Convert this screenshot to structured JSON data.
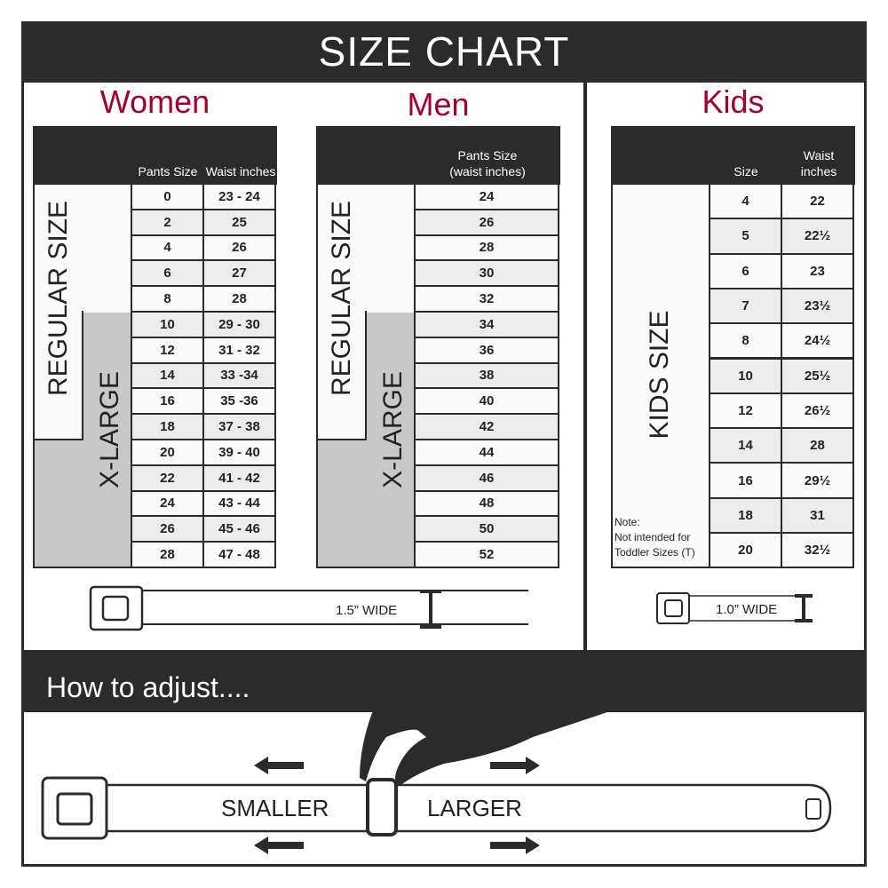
{
  "title": "SIZE CHART",
  "women": {
    "heading": "Women",
    "col_pants": "Pants Size",
    "col_waist": "Waist inches",
    "regular_label": "REGULAR SIZE",
    "xlarge_label": "X-LARGE",
    "rows": [
      [
        "0",
        "23 - 24"
      ],
      [
        "2",
        "25"
      ],
      [
        "4",
        "26"
      ],
      [
        "6",
        "27"
      ],
      [
        "8",
        "28"
      ],
      [
        "10",
        "29 - 30"
      ],
      [
        "12",
        "31 - 32"
      ],
      [
        "14",
        "33 -34"
      ],
      [
        "16",
        "35 -36"
      ],
      [
        "18",
        "37 - 38"
      ],
      [
        "20",
        "39 - 40"
      ],
      [
        "22",
        "41 - 42"
      ],
      [
        "24",
        "43 - 44"
      ],
      [
        "26",
        "45 - 46"
      ],
      [
        "28",
        "47 - 48"
      ]
    ],
    "belt_width": "1.5” WIDE"
  },
  "men": {
    "heading": "Men",
    "col_pants": "Pants Size (waist inches)",
    "regular_label": "REGULAR SIZE",
    "xlarge_label": "X-LARGE",
    "rows": [
      "24",
      "26",
      "28",
      "30",
      "32",
      "34",
      "36",
      "38",
      "40",
      "42",
      "44",
      "46",
      "48",
      "50",
      "52"
    ]
  },
  "kids": {
    "heading": "Kids",
    "col_size": "Size",
    "col_waist": "Waist inches",
    "label": "KIDS SIZE",
    "note_title": "Note:",
    "note_line1": "Not intended for",
    "note_line2": "Toddler Sizes (T)",
    "rows": [
      [
        "4",
        "22"
      ],
      [
        "5",
        "22½"
      ],
      [
        "6",
        "23"
      ],
      [
        "7",
        "23½"
      ],
      [
        "8",
        "24½"
      ],
      [
        "10",
        "25½"
      ],
      [
        "12",
        "26½"
      ],
      [
        "14",
        "28"
      ],
      [
        "16",
        "29½"
      ],
      [
        "18",
        "31"
      ],
      [
        "20",
        "32½"
      ]
    ],
    "belt_width": "1.0” WIDE"
  },
  "adjust": {
    "heading": "How to adjust....",
    "smaller": "SMALLER",
    "larger": "LARGER"
  },
  "colors": {
    "dark": "#2b2b2b",
    "accent": "#a5002b",
    "xlarge_gray": "#c8c8c8"
  }
}
